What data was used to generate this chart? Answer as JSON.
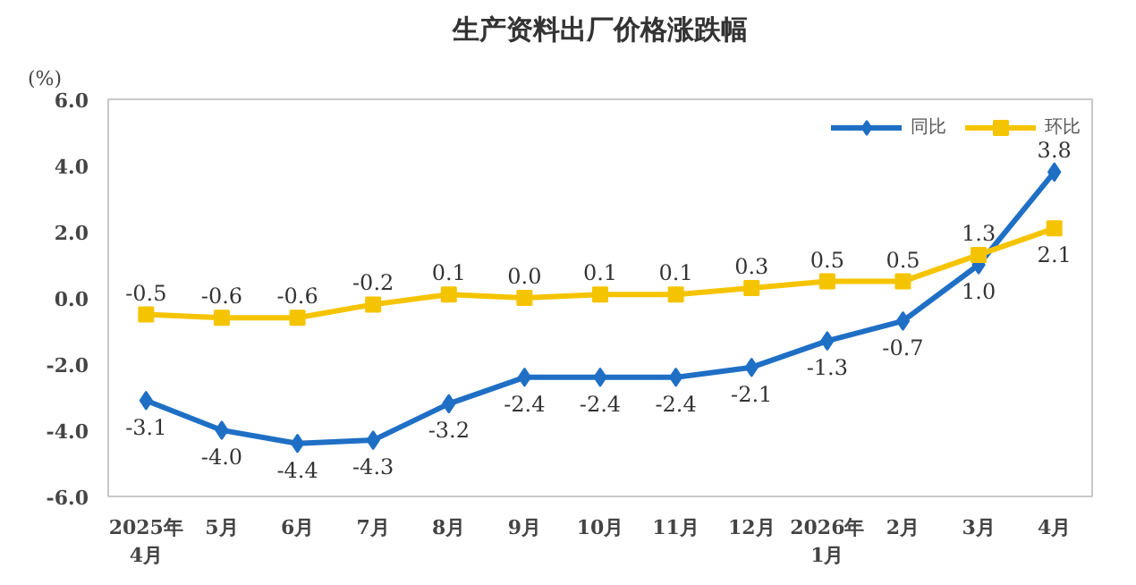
{
  "chart_data": {
    "type": "line",
    "title": "生产资料出厂价格涨跌幅",
    "ylabel": "(%)",
    "categories": [
      "2025年\n4月",
      "5月",
      "6月",
      "7月",
      "8月",
      "9月",
      "10月",
      "11月",
      "12月",
      "2026年\n1月",
      "2月",
      "3月",
      "4月"
    ],
    "series": [
      {
        "name": "同比",
        "color": "#1f6fc5",
        "marker": "diamond",
        "values": [
          -3.1,
          -4.0,
          -4.4,
          -4.3,
          -3.2,
          -2.4,
          -2.4,
          -2.4,
          -2.1,
          -1.3,
          -0.7,
          1.0,
          3.8
        ],
        "value_labels": [
          "-3.1",
          "-4.0",
          "-4.4",
          "-4.3",
          "-3.2",
          "-2.4",
          "-2.4",
          "-2.4",
          "-2.1",
          "-1.3",
          "-0.7",
          "1.0",
          "3.8"
        ]
      },
      {
        "name": "环比",
        "color": "#f5c400",
        "marker": "square",
        "values": [
          -0.5,
          -0.6,
          -0.6,
          -0.2,
          0.1,
          0.0,
          0.1,
          0.1,
          0.3,
          0.5,
          0.5,
          1.3,
          2.1
        ],
        "value_labels": [
          "-0.5",
          "-0.6",
          "-0.6",
          "-0.2",
          "0.1",
          "0.0",
          "0.1",
          "0.1",
          "0.3",
          "0.5",
          "0.5",
          "1.3",
          "2.1"
        ]
      }
    ],
    "ylim": [
      -6.0,
      6.0
    ],
    "yticks": [
      {
        "value": -6,
        "label": "-6.0"
      },
      {
        "value": -4,
        "label": "-4.0"
      },
      {
        "value": -2,
        "label": "-2.0"
      },
      {
        "value": 0,
        "label": "0.0"
      },
      {
        "value": 2,
        "label": "2.0"
      },
      {
        "value": 4,
        "label": "4.0"
      },
      {
        "value": 6,
        "label": "6.0"
      }
    ],
    "grid": false,
    "legend": "top right",
    "line_style": "solid"
  }
}
